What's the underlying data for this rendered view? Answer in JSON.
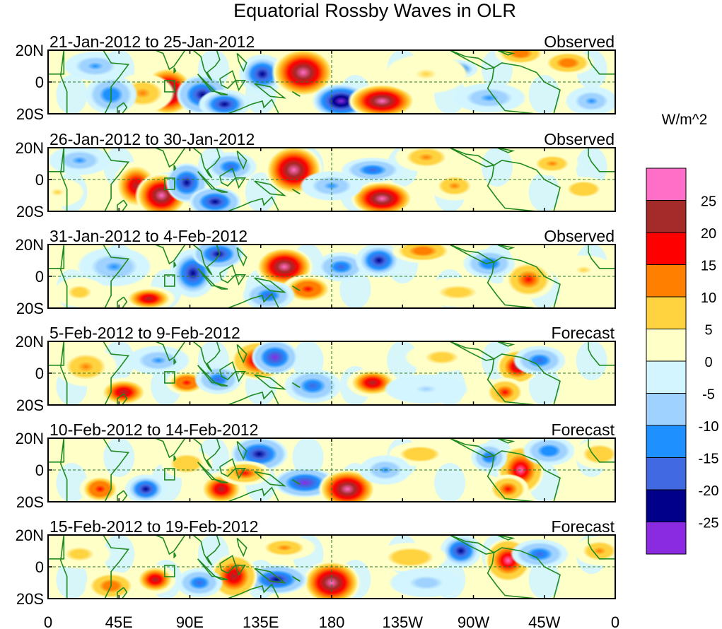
{
  "chart_data": {
    "type": "heatmap",
    "title": "Equatorial Rossby Waves in OLR",
    "units_label": "W/m^2",
    "y_ticks": [
      "20N",
      "0",
      "20S"
    ],
    "x_ticks": [
      "0",
      "45E",
      "90E",
      "135E",
      "180",
      "135W",
      "90W",
      "45W",
      "0"
    ],
    "x_tick_lon": [
      0,
      45,
      90,
      135,
      180,
      225,
      270,
      315,
      360
    ],
    "lat_range": [
      -20,
      20
    ],
    "lon_range": [
      0,
      360
    ],
    "colorbar": {
      "levels": [
        "25",
        "20",
        "15",
        "10",
        "5",
        "0",
        "-5",
        "-10",
        "-15",
        "-20",
        "-25"
      ],
      "colors": [
        "#ff6ec7",
        "#a52a2a",
        "#ff0000",
        "#ff7f00",
        "#ffd23f",
        "#ffffc8",
        "#d2f5ff",
        "#a0d2ff",
        "#1e90ff",
        "#4169e1",
        "#00008b",
        "#8a2be2"
      ]
    },
    "panels": [
      {
        "date_range": "21-Jan-2012 to 25-Jan-2012",
        "status": "Observed",
        "anomalies": [
          {
            "lon": 76,
            "lat": -6,
            "value": 30,
            "rlon": 10,
            "rlat": 10
          },
          {
            "lon": 60,
            "lat": -7,
            "value": 12,
            "rlon": 12,
            "rlat": 8
          },
          {
            "lon": 98,
            "lat": -8,
            "value": -24,
            "rlon": 10,
            "rlat": 8
          },
          {
            "lon": 112,
            "lat": -14,
            "value": -20,
            "rlon": 10,
            "rlat": 6
          },
          {
            "lon": 136,
            "lat": 5,
            "value": -22,
            "rlon": 9,
            "rlat": 8
          },
          {
            "lon": 162,
            "lat": 6,
            "value": 30,
            "rlon": 12,
            "rlat": 10
          },
          {
            "lon": 186,
            "lat": -12,
            "value": -30,
            "rlon": 11,
            "rlat": 7
          },
          {
            "lon": 212,
            "lat": -12,
            "value": 30,
            "rlon": 13,
            "rlat": 7
          },
          {
            "lon": 258,
            "lat": 8,
            "value": -22,
            "rlon": 9,
            "rlat": 4
          },
          {
            "lon": 300,
            "lat": 18,
            "value": 14,
            "rlon": 10,
            "rlat": 5
          },
          {
            "lon": 330,
            "lat": 12,
            "value": 14,
            "rlon": 10,
            "rlat": 5
          },
          {
            "lon": 40,
            "lat": -8,
            "value": -14,
            "rlon": 10,
            "rlat": 8
          },
          {
            "lon": 30,
            "lat": 10,
            "value": -10,
            "rlon": 12,
            "rlat": 6
          },
          {
            "lon": 280,
            "lat": -10,
            "value": -10,
            "rlon": 14,
            "rlat": 6
          },
          {
            "lon": 240,
            "lat": 5,
            "value": 6,
            "rlon": 16,
            "rlat": 8
          },
          {
            "lon": 345,
            "lat": -12,
            "value": -10,
            "rlon": 10,
            "rlat": 6
          }
        ]
      },
      {
        "date_range": "26-Jan-2012 to 30-Jan-2012",
        "status": "Observed",
        "anomalies": [
          {
            "lon": 56,
            "lat": -4,
            "value": 22,
            "rlon": 9,
            "rlat": 10
          },
          {
            "lon": 72,
            "lat": -10,
            "value": 28,
            "rlon": 10,
            "rlat": 9
          },
          {
            "lon": 88,
            "lat": -2,
            "value": -24,
            "rlon": 8,
            "rlat": 8
          },
          {
            "lon": 106,
            "lat": -14,
            "value": -24,
            "rlon": 10,
            "rlat": 6
          },
          {
            "lon": 116,
            "lat": 8,
            "value": -18,
            "rlon": 10,
            "rlat": 6
          },
          {
            "lon": 156,
            "lat": 6,
            "value": 30,
            "rlon": 11,
            "rlat": 10
          },
          {
            "lon": 212,
            "lat": -12,
            "value": 28,
            "rlon": 12,
            "rlat": 7
          },
          {
            "lon": 206,
            "lat": 6,
            "value": -18,
            "rlon": 12,
            "rlat": 5
          },
          {
            "lon": 240,
            "lat": 14,
            "value": 12,
            "rlon": 12,
            "rlat": 6
          },
          {
            "lon": 258,
            "lat": -4,
            "value": 12,
            "rlon": 10,
            "rlat": 6
          },
          {
            "lon": 320,
            "lat": 10,
            "value": 12,
            "rlon": 10,
            "rlat": 5
          },
          {
            "lon": 340,
            "lat": -6,
            "value": 10,
            "rlon": 10,
            "rlat": 5
          },
          {
            "lon": 180,
            "lat": -4,
            "value": -12,
            "rlon": 12,
            "rlat": 6
          },
          {
            "lon": 20,
            "lat": 12,
            "value": -12,
            "rlon": 12,
            "rlat": 6
          },
          {
            "lon": 6,
            "lat": -8,
            "value": 6,
            "rlon": 10,
            "rlat": 6
          }
        ]
      },
      {
        "date_range": "31-Jan-2012 to 4-Feb-2012",
        "status": "Observed",
        "anomalies": [
          {
            "lon": 92,
            "lat": 2,
            "value": -22,
            "rlon": 9,
            "rlat": 10
          },
          {
            "lon": 108,
            "lat": 14,
            "value": -24,
            "rlon": 10,
            "rlat": 6
          },
          {
            "lon": 150,
            "lat": 6,
            "value": 28,
            "rlon": 11,
            "rlat": 8
          },
          {
            "lon": 165,
            "lat": -8,
            "value": 20,
            "rlon": 10,
            "rlat": 6
          },
          {
            "lon": 140,
            "lat": -12,
            "value": -18,
            "rlon": 10,
            "rlat": 6
          },
          {
            "lon": 64,
            "lat": -14,
            "value": 22,
            "rlon": 10,
            "rlat": 5
          },
          {
            "lon": 42,
            "lat": 6,
            "value": -10,
            "rlon": 14,
            "rlat": 8
          },
          {
            "lon": 186,
            "lat": 6,
            "value": -18,
            "rlon": 10,
            "rlat": 6
          },
          {
            "lon": 210,
            "lat": 10,
            "value": -20,
            "rlon": 9,
            "rlat": 7
          },
          {
            "lon": 238,
            "lat": 16,
            "value": 14,
            "rlon": 12,
            "rlat": 5
          },
          {
            "lon": 305,
            "lat": -2,
            "value": 18,
            "rlon": 10,
            "rlat": 8
          },
          {
            "lon": 280,
            "lat": 8,
            "value": -14,
            "rlon": 10,
            "rlat": 6
          },
          {
            "lon": 260,
            "lat": -10,
            "value": 8,
            "rlon": 16,
            "rlat": 6
          },
          {
            "lon": 340,
            "lat": 4,
            "value": 6,
            "rlon": 12,
            "rlat": 6
          },
          {
            "lon": 20,
            "lat": -10,
            "value": 8,
            "rlon": 10,
            "rlat": 6
          }
        ]
      },
      {
        "date_range": "5-Feb-2012 to 9-Feb-2012",
        "status": "Forecast",
        "anomalies": [
          {
            "lon": 134,
            "lat": 8,
            "value": 24,
            "rlon": 11,
            "rlat": 8
          },
          {
            "lon": 144,
            "lat": 10,
            "value": -25,
            "rlon": 9,
            "rlat": 7
          },
          {
            "lon": 48,
            "lat": -12,
            "value": 22,
            "rlon": 10,
            "rlat": 6
          },
          {
            "lon": 24,
            "lat": 4,
            "value": 12,
            "rlon": 12,
            "rlat": 8
          },
          {
            "lon": 88,
            "lat": -6,
            "value": 20,
            "rlon": 8,
            "rlat": 5
          },
          {
            "lon": 108,
            "lat": -4,
            "value": -16,
            "rlon": 9,
            "rlat": 6
          },
          {
            "lon": 168,
            "lat": -8,
            "value": -18,
            "rlon": 11,
            "rlat": 7
          },
          {
            "lon": 206,
            "lat": -6,
            "value": 22,
            "rlon": 10,
            "rlat": 6
          },
          {
            "lon": 298,
            "lat": 4,
            "value": 24,
            "rlon": 8,
            "rlat": 7
          },
          {
            "lon": 290,
            "lat": -12,
            "value": 18,
            "rlon": 8,
            "rlat": 6
          },
          {
            "lon": 312,
            "lat": 8,
            "value": -18,
            "rlon": 10,
            "rlat": 6
          },
          {
            "lon": 250,
            "lat": 10,
            "value": 8,
            "rlon": 14,
            "rlat": 6
          },
          {
            "lon": 70,
            "lat": 8,
            "value": -10,
            "rlon": 12,
            "rlat": 6
          },
          {
            "lon": 240,
            "lat": -10,
            "value": -6,
            "rlon": 16,
            "rlat": 6
          }
        ]
      },
      {
        "date_range": "10-Feb-2012 to 14-Feb-2012",
        "status": "Forecast",
        "anomalies": [
          {
            "lon": 134,
            "lat": 10,
            "value": -24,
            "rlon": 11,
            "rlat": 7
          },
          {
            "lon": 163,
            "lat": -8,
            "value": -25,
            "rlon": 12,
            "rlat": 6
          },
          {
            "lon": 190,
            "lat": -12,
            "value": 30,
            "rlon": 11,
            "rlat": 8
          },
          {
            "lon": 110,
            "lat": -12,
            "value": 22,
            "rlon": 9,
            "rlat": 7
          },
          {
            "lon": 125,
            "lat": -2,
            "value": 16,
            "rlon": 10,
            "rlat": 5
          },
          {
            "lon": 33,
            "lat": -12,
            "value": 20,
            "rlon": 8,
            "rlat": 6
          },
          {
            "lon": 62,
            "lat": -12,
            "value": -20,
            "rlon": 8,
            "rlat": 6
          },
          {
            "lon": 300,
            "lat": 0,
            "value": 26,
            "rlon": 9,
            "rlat": 10
          },
          {
            "lon": 292,
            "lat": -12,
            "value": 16,
            "rlon": 8,
            "rlat": 6
          },
          {
            "lon": 280,
            "lat": 8,
            "value": -16,
            "rlon": 7,
            "rlat": 6
          },
          {
            "lon": 318,
            "lat": 12,
            "value": -14,
            "rlon": 10,
            "rlat": 6
          },
          {
            "lon": 350,
            "lat": 10,
            "value": 10,
            "rlon": 10,
            "rlat": 6
          },
          {
            "lon": 236,
            "lat": 10,
            "value": 10,
            "rlon": 12,
            "rlat": 5
          },
          {
            "lon": 214,
            "lat": 0,
            "value": -10,
            "rlon": 10,
            "rlat": 6
          },
          {
            "lon": 88,
            "lat": 4,
            "value": 10,
            "rlon": 10,
            "rlat": 6
          }
        ]
      },
      {
        "date_range": "15-Feb-2012 to 19-Feb-2012",
        "status": "Forecast",
        "anomalies": [
          {
            "lon": 180,
            "lat": -10,
            "value": 30,
            "rlon": 11,
            "rlat": 9
          },
          {
            "lon": 145,
            "lat": -8,
            "value": -24,
            "rlon": 12,
            "rlat": 6
          },
          {
            "lon": 118,
            "lat": -6,
            "value": 24,
            "rlon": 9,
            "rlat": 9
          },
          {
            "lon": 96,
            "lat": -10,
            "value": -16,
            "rlon": 9,
            "rlat": 6
          },
          {
            "lon": 68,
            "lat": -8,
            "value": 22,
            "rlon": 8,
            "rlat": 6
          },
          {
            "lon": 40,
            "lat": -12,
            "value": 14,
            "rlon": 10,
            "rlat": 6
          },
          {
            "lon": 150,
            "lat": 12,
            "value": 12,
            "rlon": 12,
            "rlat": 5
          },
          {
            "lon": 292,
            "lat": 4,
            "value": 26,
            "rlon": 9,
            "rlat": 9
          },
          {
            "lon": 262,
            "lat": 10,
            "value": -22,
            "rlon": 8,
            "rlat": 7
          },
          {
            "lon": 312,
            "lat": 8,
            "value": -16,
            "rlon": 11,
            "rlat": 6
          },
          {
            "lon": 350,
            "lat": 10,
            "value": 12,
            "rlon": 10,
            "rlat": 6
          },
          {
            "lon": 230,
            "lat": 6,
            "value": 10,
            "rlon": 14,
            "rlat": 6
          },
          {
            "lon": 240,
            "lat": -10,
            "value": -8,
            "rlon": 14,
            "rlat": 6
          },
          {
            "lon": 20,
            "lat": 8,
            "value": 8,
            "rlon": 12,
            "rlat": 6
          }
        ]
      }
    ]
  }
}
